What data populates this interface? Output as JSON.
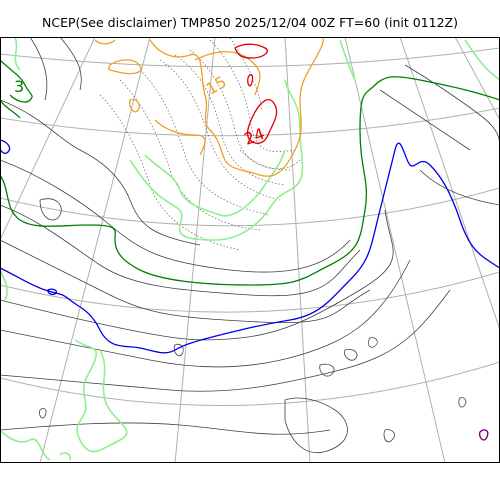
{
  "title": "NCEP(See disclaimer) TMP850 2025/12/04 00Z FT=60 (init 0112Z)",
  "contour_labels": [
    {
      "text": "3",
      "color": "#008000"
    },
    {
      "text": "15",
      "color": "#f0a020"
    },
    {
      "text": "24",
      "color": "#e00000"
    }
  ],
  "colors": {
    "graticule": "#b0b0b0",
    "isotherm_thin": "#404040",
    "isotherm_dotted": "#606060",
    "freezing_line": "#0000ee",
    "green_dark": "#008000",
    "green_light": "#90ee90",
    "orange": "#f0a020",
    "red": "#e00000",
    "purple": "#800080"
  }
}
